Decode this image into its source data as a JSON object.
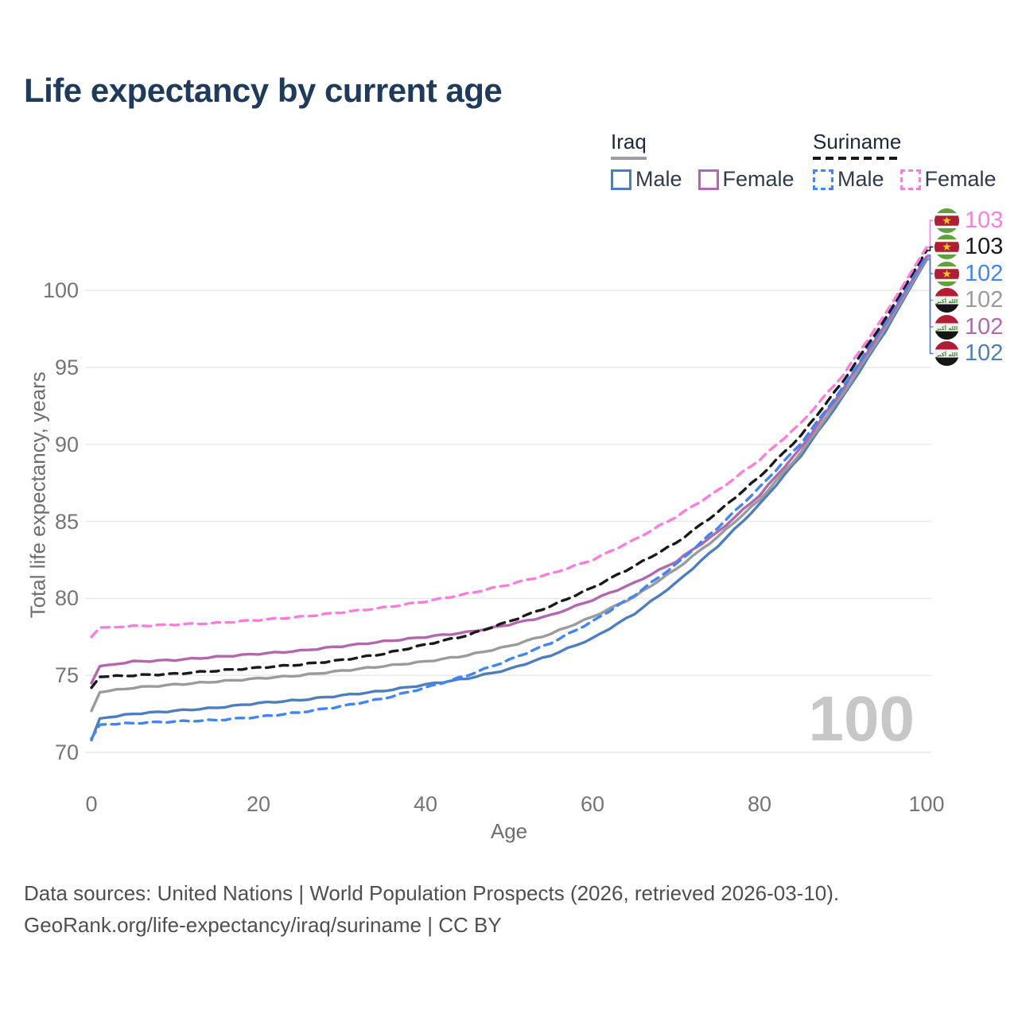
{
  "title": "Life expectancy by current age",
  "legend": {
    "groups": [
      {
        "name": "Iraq",
        "line_style": "solid",
        "underline_color": "#9aa0a6",
        "items": [
          {
            "label": "Male",
            "color": "#4d7ebf",
            "dashed": false
          },
          {
            "label": "Female",
            "color": "#b168ac",
            "dashed": false
          }
        ]
      },
      {
        "name": "Suriname",
        "line_style": "dashed",
        "underline_color": "#1a1a1a",
        "items": [
          {
            "label": "Male",
            "color": "#4285f4",
            "dashed": true
          },
          {
            "label": "Female",
            "color": "#fc7ed9",
            "dashed": true
          }
        ]
      }
    ]
  },
  "chart_data": {
    "type": "line",
    "title": "Life expectancy by current age",
    "xlabel": "Age",
    "ylabel": "Total life expectancy, years",
    "xlim": [
      0,
      100
    ],
    "ylim": [
      70,
      103
    ],
    "x_ticks": [
      0,
      20,
      40,
      60,
      80,
      100
    ],
    "y_ticks": [
      70,
      75,
      80,
      85,
      90,
      95,
      100
    ],
    "grid": "horizontal",
    "hover_age_label": "100",
    "ages": [
      0,
      1,
      5,
      10,
      15,
      20,
      25,
      30,
      35,
      40,
      45,
      50,
      55,
      60,
      65,
      70,
      75,
      80,
      85,
      90,
      95,
      100
    ],
    "series": [
      {
        "id": "iraq_male",
        "name": "Iraq — Male",
        "country": "Iraq",
        "sex": "Male",
        "color": "#4d7ebf",
        "dashed": false,
        "values": [
          70.8,
          72.2,
          72.5,
          72.7,
          72.9,
          73.2,
          73.4,
          73.7,
          74.0,
          74.4,
          74.8,
          75.4,
          76.3,
          77.4,
          79.0,
          81.0,
          83.4,
          86.1,
          89.3,
          93.1,
          97.3,
          102.0
        ]
      },
      {
        "id": "iraq_female",
        "name": "Iraq — Female",
        "country": "Iraq",
        "sex": "Female",
        "color": "#b168ac",
        "dashed": false,
        "values": [
          74.5,
          75.6,
          75.9,
          76.0,
          76.2,
          76.4,
          76.6,
          76.9,
          77.2,
          77.5,
          77.8,
          78.3,
          78.9,
          79.9,
          81.0,
          82.4,
          84.3,
          86.7,
          89.8,
          93.6,
          97.7,
          102.2
        ]
      },
      {
        "id": "iraq_total",
        "name": "Iraq — Total",
        "country": "Iraq",
        "sex": "Total",
        "color": "#9b9b9b",
        "dashed": false,
        "values": [
          72.7,
          73.9,
          74.2,
          74.4,
          74.6,
          74.8,
          75.0,
          75.3,
          75.6,
          75.9,
          76.3,
          76.9,
          77.7,
          78.8,
          80.1,
          81.9,
          84.0,
          86.4,
          89.5,
          93.3,
          97.5,
          102.1
        ]
      },
      {
        "id": "suriname_male",
        "name": "Suriname — Male",
        "country": "Suriname",
        "sex": "Male",
        "color": "#4285f4",
        "dashed": true,
        "values": [
          70.9,
          71.8,
          71.9,
          72.0,
          72.1,
          72.3,
          72.6,
          73.0,
          73.5,
          74.2,
          75.0,
          76.0,
          77.1,
          78.5,
          80.2,
          82.2,
          84.6,
          87.2,
          90.1,
          93.7,
          97.9,
          102.3
        ]
      },
      {
        "id": "suriname_female",
        "name": "Suriname — Female",
        "country": "Suriname",
        "sex": "Female",
        "color": "#fc7ed9",
        "dashed": true,
        "values": [
          77.5,
          78.1,
          78.2,
          78.3,
          78.4,
          78.6,
          78.8,
          79.1,
          79.4,
          79.8,
          80.3,
          80.9,
          81.6,
          82.5,
          83.8,
          85.3,
          87.0,
          89.0,
          91.4,
          94.5,
          98.4,
          102.8
        ]
      },
      {
        "id": "suriname_total",
        "name": "Suriname — Total",
        "country": "Suriname",
        "sex": "Total",
        "color": "#1a1a1a",
        "dashed": true,
        "values": [
          74.2,
          74.9,
          75.0,
          75.1,
          75.3,
          75.5,
          75.7,
          76.0,
          76.4,
          77.0,
          77.6,
          78.5,
          79.5,
          80.7,
          82.1,
          83.6,
          85.6,
          87.9,
          90.6,
          94.1,
          98.1,
          102.6
        ]
      }
    ],
    "end_labels": [
      {
        "value": "103",
        "series": "suriname_female",
        "flag": "suriname"
      },
      {
        "value": "103",
        "series": "suriname_total",
        "flag": "suriname"
      },
      {
        "value": "102",
        "series": "suriname_male",
        "flag": "suriname"
      },
      {
        "value": "102",
        "series": "iraq_total",
        "flag": "iraq"
      },
      {
        "value": "102",
        "series": "iraq_female",
        "flag": "iraq"
      },
      {
        "value": "102",
        "series": "iraq_male",
        "flag": "iraq"
      }
    ]
  },
  "footer": {
    "line1": "Data sources: United Nations | World Population Prospects (2026, retrieved 2026-03-10).",
    "line2": "GeoRank.org/life-expectancy/iraq/suriname | CC BY"
  }
}
